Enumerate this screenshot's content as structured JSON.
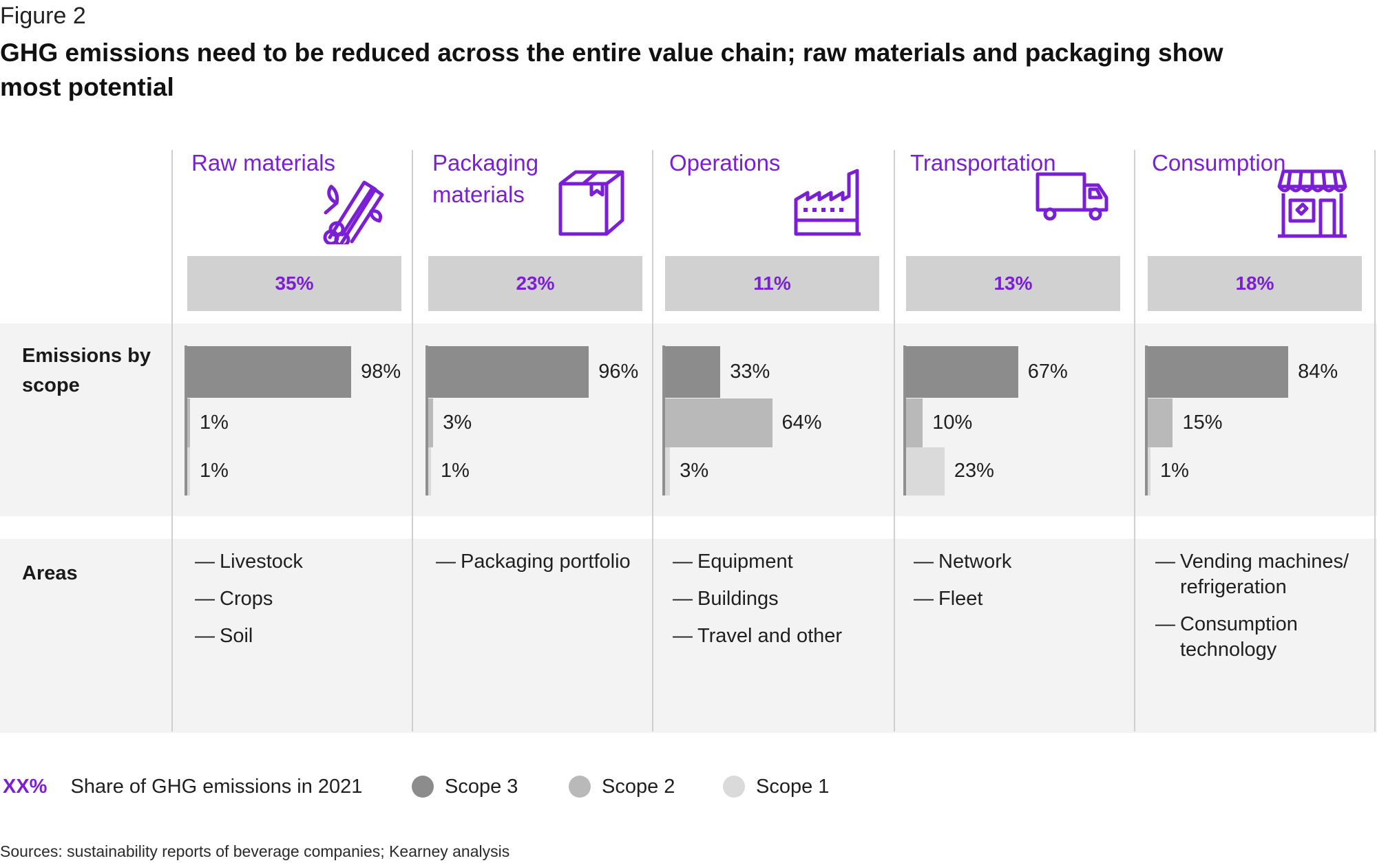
{
  "figure_label": "Figure 2",
  "title": "GHG emissions need to be reduced across the entire value chain; raw materials and packaging show most potential",
  "row_labels": {
    "scope": "Emissions by scope",
    "areas": "Areas"
  },
  "legend": {
    "share_marker": "XX%",
    "share_label": "Share of GHG emissions in 2021",
    "scope3": "Scope 3",
    "scope2": "Scope 2",
    "scope1": "Scope 1"
  },
  "source": "Sources: sustainability reports of beverage companies; Kearney analysis",
  "colors": {
    "accent": "#7b1fd6",
    "scope3": "#8c8c8c",
    "scope2": "#b9b9b9",
    "scope1": "#dadada",
    "share_box": "#d1d1d1",
    "band": "#f3f3f3"
  },
  "chart_data": {
    "type": "bar",
    "title": "GHG emissions need to be reduced across the entire value chain; raw materials and packaging show most potential",
    "categories": [
      "Raw materials",
      "Packaging materials",
      "Operations",
      "Transportation",
      "Consumption"
    ],
    "share_of_emissions_2021": [
      "35%",
      "23%",
      "11%",
      "13%",
      "18%"
    ],
    "series": [
      {
        "name": "Scope 3",
        "values": [
          98,
          96,
          33,
          67,
          84
        ],
        "labels": [
          "98%",
          "96%",
          "33%",
          "67%",
          "84%"
        ]
      },
      {
        "name": "Scope 2",
        "values": [
          1,
          3,
          64,
          10,
          15
        ],
        "labels": [
          "1%",
          "3%",
          "64%",
          "10%",
          "15%"
        ]
      },
      {
        "name": "Scope 1",
        "values": [
          1,
          1,
          3,
          23,
          1
        ],
        "labels": [
          "1%",
          "1%",
          "3%",
          "23%",
          "1%"
        ]
      }
    ],
    "unit": "%",
    "xlim": [
      0,
      100
    ],
    "legend_position": "bottom",
    "grid": false
  },
  "columns": [
    {
      "title": "Raw materials",
      "icon": "raw-materials-logs-icon",
      "share": "35%",
      "areas": [
        "Livestock",
        "Crops",
        "Soil"
      ]
    },
    {
      "title": "Packaging materials",
      "icon": "package-box-icon",
      "share": "23%",
      "areas": [
        "Packaging portfolio"
      ]
    },
    {
      "title": "Operations",
      "icon": "factory-icon",
      "share": "11%",
      "areas": [
        "Equipment",
        "Buildings",
        "Travel and other"
      ]
    },
    {
      "title": "Transportation",
      "icon": "truck-icon",
      "share": "13%",
      "areas": [
        "Network",
        "Fleet"
      ]
    },
    {
      "title": "Consumption",
      "icon": "storefront-icon",
      "share": "18%",
      "areas": [
        "Vending machines/ refrigeration",
        "Consumption technology"
      ]
    }
  ],
  "area_dash": "—"
}
